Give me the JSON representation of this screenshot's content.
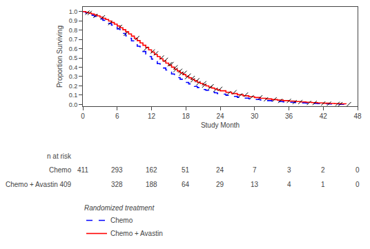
{
  "chart_data": {
    "type": "step",
    "ylabel": "Proportion Surviving",
    "xlabel": "Study Month",
    "xlim": [
      0,
      48
    ],
    "ylim": [
      -0.02,
      1.05
    ],
    "xticks": [
      0,
      6,
      12,
      18,
      24,
      30,
      36,
      42,
      48
    ],
    "yticks": [
      {
        "value": 0.0,
        "label": "0.0"
      },
      0.1,
      0.2,
      0.3,
      0.4,
      0.5,
      0.6,
      0.7,
      0.8,
      0.9,
      {
        "value": 1.0,
        "label": "1.0"
      }
    ],
    "grid": false,
    "legend": "bottom",
    "legend_title": "Randomized treatment",
    "series": [
      {
        "name": "Chemo",
        "color": "blue",
        "line_style": "dashed",
        "x": [
          0,
          0.5,
          1,
          1.5,
          2,
          2.5,
          3,
          3.5,
          4,
          4.5,
          5,
          5.5,
          6,
          6.5,
          7,
          7.5,
          8,
          8.5,
          9,
          9.5,
          10,
          10.5,
          11,
          11.5,
          12,
          12.5,
          13,
          13.5,
          14,
          14.5,
          15,
          15.5,
          16,
          16.5,
          17,
          17.5,
          18,
          18.5,
          19,
          19.5,
          20,
          20.5,
          21,
          21.5,
          22,
          22.5,
          23,
          23.5,
          24,
          25,
          26,
          27,
          28,
          29,
          30,
          31,
          32,
          33,
          34,
          35,
          36,
          37,
          38,
          39,
          40,
          41,
          42,
          43,
          44,
          45,
          46
        ],
        "values": [
          1.0,
          0.985,
          0.972,
          0.96,
          0.948,
          0.935,
          0.921,
          0.906,
          0.89,
          0.873,
          0.854,
          0.834,
          0.812,
          0.789,
          0.764,
          0.738,
          0.711,
          0.684,
          0.656,
          0.627,
          0.598,
          0.57,
          0.542,
          0.515,
          0.488,
          0.463,
          0.439,
          0.415,
          0.392,
          0.37,
          0.348,
          0.328,
          0.308,
          0.289,
          0.271,
          0.253,
          0.237,
          0.221,
          0.207,
          0.194,
          0.182,
          0.171,
          0.161,
          0.151,
          0.142,
          0.133,
          0.125,
          0.117,
          0.11,
          0.097,
          0.086,
          0.076,
          0.068,
          0.06,
          0.053,
          0.047,
          0.041,
          0.036,
          0.031,
          0.027,
          0.023,
          0.02,
          0.017,
          0.014,
          0.011,
          0.009,
          0.007,
          0.005,
          0.003,
          0.002,
          0.001
        ],
        "censored": {
          "marker": "tick",
          "color": "black",
          "x": [
            0.8,
            2.2,
            4.8,
            7.5,
            11.0,
            12.8,
            14.5,
            15.5,
            16.2,
            17.0,
            17.8,
            18.5,
            19.2,
            20.0,
            21.2,
            22.5,
            24.0,
            26.5,
            28.5,
            31.0,
            33.5,
            36.0,
            38.0,
            40.5,
            43.0,
            45.0
          ],
          "values": [
            0.988,
            0.953,
            0.876,
            0.76,
            0.6,
            0.55,
            0.48,
            0.435,
            0.4,
            0.362,
            0.34,
            0.31,
            0.285,
            0.26,
            0.228,
            0.196,
            0.168,
            0.132,
            0.106,
            0.076,
            0.055,
            0.038,
            0.026,
            0.016,
            0.008,
            0.003
          ]
        }
      },
      {
        "name": "Chemo + Avastin",
        "color": "red",
        "line_style": "solid",
        "x": [
          0,
          0.5,
          1,
          1.5,
          2,
          2.5,
          3,
          3.5,
          4,
          4.5,
          5,
          5.5,
          6,
          6.5,
          7,
          7.5,
          8,
          8.5,
          9,
          9.5,
          10,
          10.5,
          11,
          11.5,
          12,
          12.5,
          13,
          13.5,
          14,
          14.5,
          15,
          15.5,
          16,
          16.5,
          17,
          17.5,
          18,
          18.5,
          19,
          19.5,
          20,
          20.5,
          21,
          21.5,
          22,
          22.5,
          23,
          23.5,
          24,
          25,
          26,
          27,
          28,
          29,
          30,
          31,
          32,
          33,
          34,
          35,
          36,
          37,
          38,
          39,
          40,
          41,
          42,
          43,
          44,
          45,
          46
        ],
        "values": [
          1.0,
          0.992,
          0.983,
          0.974,
          0.964,
          0.953,
          0.941,
          0.928,
          0.914,
          0.898,
          0.882,
          0.864,
          0.845,
          0.825,
          0.804,
          0.782,
          0.759,
          0.735,
          0.711,
          0.687,
          0.662,
          0.637,
          0.613,
          0.588,
          0.563,
          0.539,
          0.515,
          0.491,
          0.468,
          0.445,
          0.423,
          0.401,
          0.38,
          0.36,
          0.34,
          0.321,
          0.303,
          0.286,
          0.27,
          0.254,
          0.239,
          0.225,
          0.212,
          0.199,
          0.187,
          0.176,
          0.166,
          0.156,
          0.147,
          0.131,
          0.117,
          0.104,
          0.093,
          0.083,
          0.074,
          0.066,
          0.059,
          0.052,
          0.046,
          0.041,
          0.036,
          0.031,
          0.027,
          0.023,
          0.019,
          0.016,
          0.013,
          0.01,
          0.008,
          0.006,
          0.004
        ],
        "censored": {
          "marker": "tick",
          "color": "black",
          "x": [
            1.2,
            3.5,
            6.5,
            9.5,
            12.2,
            13.8,
            15.2,
            16.2,
            17.2,
            18.2,
            19.2,
            20.2,
            21.2,
            22.2,
            23.2,
            25.5,
            27.5,
            29.5,
            32.0,
            34.5,
            37.0,
            39.5,
            42.0,
            44.5,
            46.5
          ],
          "values": [
            0.985,
            0.938,
            0.835,
            0.715,
            0.57,
            0.505,
            0.432,
            0.372,
            0.332,
            0.294,
            0.26,
            0.228,
            0.203,
            0.179,
            0.158,
            0.121,
            0.097,
            0.078,
            0.055,
            0.038,
            0.025,
            0.016,
            0.01,
            0.006,
            0.003
          ]
        }
      }
    ],
    "at_risk": {
      "title": "n at risk",
      "rows": [
        {
          "label": "Chemo",
          "x": [
            0,
            6,
            12,
            18,
            24,
            30,
            36,
            42,
            48
          ],
          "values": [
            411,
            293,
            162,
            51,
            24,
            7,
            3,
            2,
            0
          ]
        },
        {
          "label": "Chemo + Avastin 409",
          "x": [
            6,
            12,
            18,
            24,
            30,
            36,
            42,
            48
          ],
          "values": [
            328,
            188,
            64,
            29,
            13,
            4,
            1,
            0
          ]
        }
      ]
    }
  }
}
